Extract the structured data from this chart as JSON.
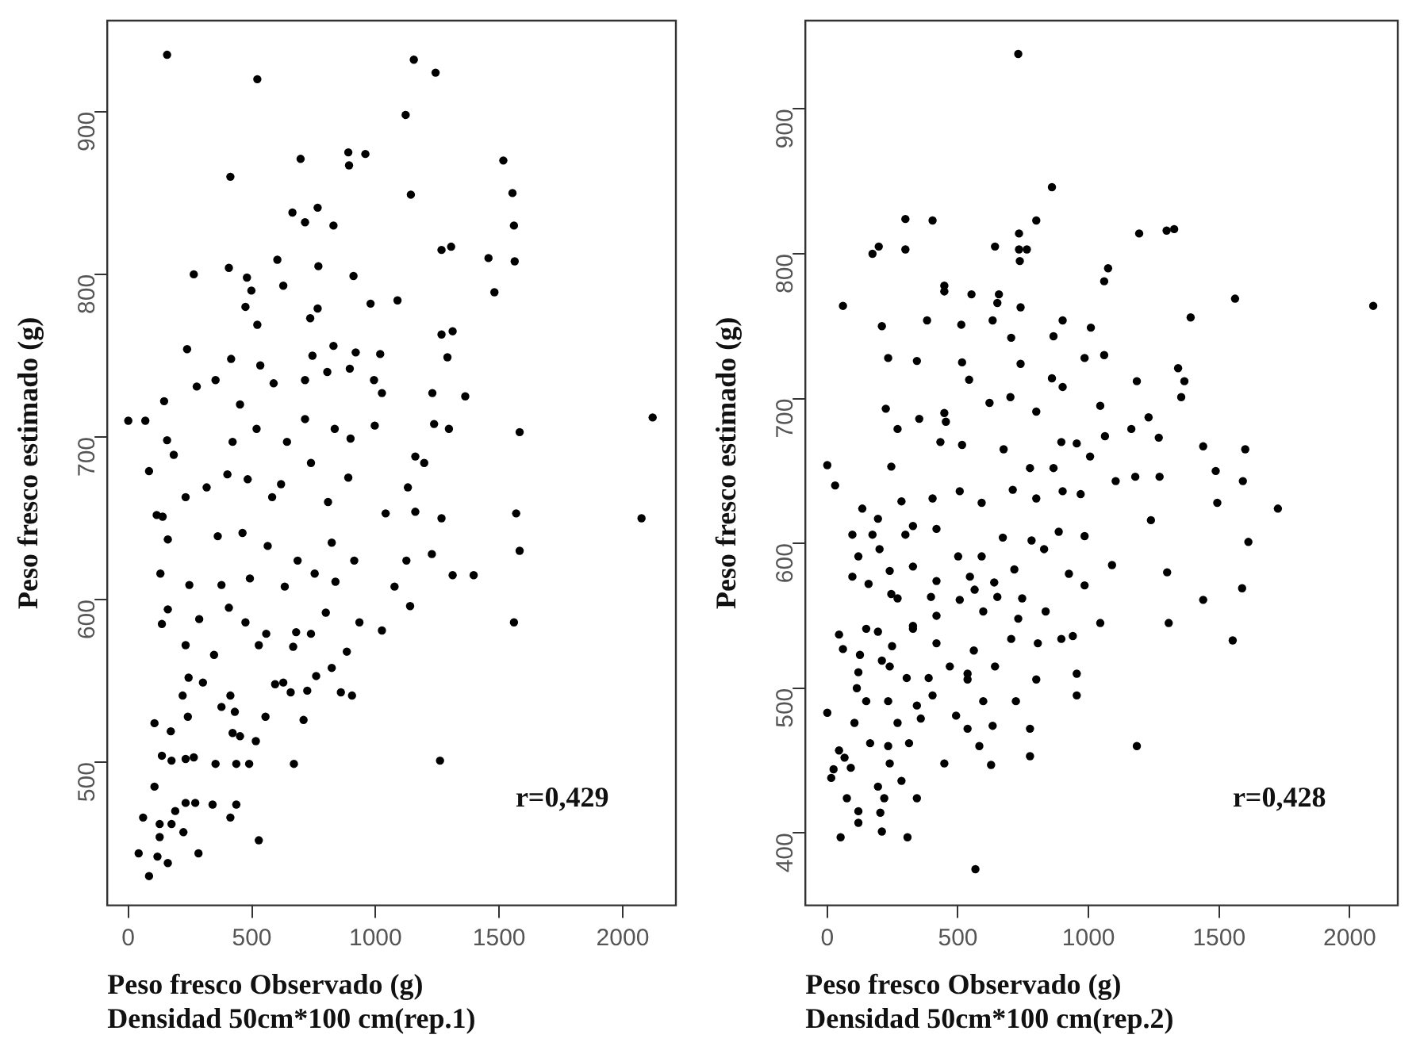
{
  "chart_data": [
    {
      "type": "scatter",
      "xlabel": "Peso fresco Observado (g)\nDensidad 50cm*100 cm(rep.1)",
      "ylabel": "Peso fresco estimado (g)",
      "xlim": [
        -85,
        2215
      ],
      "ylim": [
        412,
        956
      ],
      "xticks": [
        0,
        500,
        1000,
        1500,
        2000
      ],
      "yticks": [
        500,
        600,
        700,
        800,
        900
      ],
      "grid": false,
      "legend": false,
      "marker": "circle",
      "annotations": [
        "r=0,429"
      ],
      "series": [
        {
          "color": "#000000",
          "x": [
            157,
            522,
            1155,
            1243,
            1122,
            697,
            890,
            959,
            893,
            1517,
            1554,
            413,
            1143,
            664,
            766,
            715,
            830,
            1560,
            1267,
            1306,
            1457,
            1563,
            1481,
            265,
            407,
            480,
            603,
            769,
            911,
            627,
            498,
            474,
            766,
            980,
            1089,
            522,
            736,
            1267,
            1312,
            1291,
            238,
            416,
            534,
            745,
            830,
            920,
            1019,
            69,
            145,
            277,
            353,
            452,
            588,
            715,
            805,
            896,
            994,
            1026,
            1230,
            1363,
            0,
            1583,
            2121,
            2076,
            84,
            157,
            184,
            422,
            519,
            642,
            715,
            835,
            899,
            997,
            1237,
            1297,
            1161,
            1197,
            890,
            739,
            618,
            483,
            401,
            232,
            115,
            139,
            317,
            582,
            808,
            1041,
            1267,
            1569,
            1131,
            1161,
            160,
            362,
            462,
            564,
            685,
            823,
            914,
            1125,
            1228,
            1312,
            1397,
            1583,
            1077,
            130,
            247,
            377,
            492,
            633,
            754,
            838,
            1140,
            1560,
            160,
            287,
            407,
            474,
            558,
            679,
            799,
            935,
            1026,
            136,
            232,
            347,
            528,
            667,
            739,
            884,
            594,
            627,
            823,
            760,
            657,
            724,
            860,
            905,
            244,
            302,
            220,
            413,
            377,
            431,
            555,
            709,
            241,
            106,
            172,
            422,
            452,
            516,
            136,
            175,
            232,
            265,
            353,
            437,
            489,
            670,
            1261,
            106,
            232,
            271,
            341,
            437,
            190,
            60,
            413,
            127,
            175,
            223,
            127,
            528,
            284,
            42,
            118,
            160,
            84
          ],
          "values": [
            935,
            920,
            932,
            924,
            898,
            871,
            875,
            874,
            867,
            870,
            850,
            860,
            849,
            838,
            841,
            832,
            830,
            830,
            815,
            817,
            810,
            808,
            789,
            800,
            804,
            798,
            809,
            805,
            799,
            793,
            790,
            780,
            779,
            782,
            784,
            769,
            773,
            763,
            765,
            749,
            754,
            748,
            744,
            750,
            756,
            752,
            751,
            710,
            722,
            731,
            735,
            720,
            733,
            735,
            740,
            742,
            735,
            727,
            727,
            725,
            710,
            703,
            712,
            650,
            679,
            698,
            689,
            697,
            705,
            697,
            711,
            705,
            699,
            707,
            708,
            705,
            688,
            684,
            675,
            684,
            671,
            674,
            677,
            663,
            652,
            651,
            669,
            663,
            660,
            653,
            650,
            653,
            669,
            654,
            637,
            639,
            641,
            633,
            624,
            635,
            624,
            624,
            628,
            615,
            615,
            630,
            608,
            616,
            609,
            609,
            613,
            608,
            616,
            611,
            596,
            586,
            594,
            588,
            595,
            586,
            579,
            580,
            592,
            586,
            581,
            585,
            572,
            566,
            572,
            571,
            579,
            568,
            548,
            549,
            558,
            553,
            543,
            544,
            543,
            541,
            552,
            549,
            541,
            541,
            534,
            531,
            528,
            526,
            528,
            524,
            519,
            518,
            516,
            513,
            504,
            501,
            502,
            503,
            499,
            499,
            499,
            499,
            501,
            485,
            475,
            475,
            474,
            474,
            470,
            466,
            466,
            462,
            462,
            457,
            454,
            452,
            444,
            444,
            442,
            438,
            430
          ]
        }
      ]
    },
    {
      "type": "scatter",
      "xlabel": "Peso fresco Observado (g)\nDensidad 50cm*100 cm(rep.2)",
      "ylabel": "Peso fresco estimado (g)",
      "xlim": [
        -84,
        2184
      ],
      "ylim": [
        350,
        961
      ],
      "xticks": [
        0,
        500,
        1000,
        1500,
        2000
      ],
      "yticks": [
        400,
        500,
        600,
        700,
        800,
        900
      ],
      "grid": false,
      "legend": false,
      "marker": "circle",
      "annotations": [
        "r=0,428"
      ],
      "series": [
        {
          "color": "#000000",
          "x": [
            731,
            860,
            299,
            403,
            800,
            734,
            1194,
            1299,
            1328,
            173,
            197,
            299,
            642,
            734,
            764,
            737,
            1075,
            1060,
            448,
            448,
            60,
            552,
            657,
            651,
            740,
            1561,
            2090,
            1391,
            209,
            382,
            513,
            633,
            901,
            1009,
            704,
            866,
            1060,
            985,
            233,
            343,
            516,
            543,
            740,
            1185,
            1367,
            1343,
            1355,
            224,
            269,
            352,
            448,
            454,
            621,
            701,
            800,
            860,
            901,
            1045,
            1063,
            1164,
            1230,
            1269,
            1439,
            1600,
            0,
            30,
            245,
            433,
            516,
            675,
            776,
            866,
            896,
            955,
            1006,
            1104,
            1179,
            1272,
            1487,
            1591,
            1239,
            1493,
            1725,
            1612,
            134,
            194,
            284,
            328,
            403,
            507,
            591,
            710,
            800,
            901,
            970,
            96,
            173,
            299,
            418,
            501,
            591,
            672,
            782,
            886,
            985,
            1090,
            200,
            119,
            96,
            239,
            328,
            418,
            546,
            639,
            716,
            830,
            925,
            1301,
            1588,
            158,
            269,
            245,
            397,
            507,
            564,
            651,
            746,
            985,
            1439,
            149,
            194,
            328,
            328,
            418,
            597,
            731,
            836,
            1045,
            1307,
            1552,
            45,
            248,
            418,
            561,
            704,
            806,
            896,
            940,
            60,
            125,
            209,
            239,
            469,
            537,
            642,
            119,
            304,
            388,
            537,
            800,
            955,
            955,
            113,
            149,
            233,
            343,
            403,
            597,
            722,
            0,
            104,
            269,
            358,
            493,
            537,
            633,
            776,
            164,
            233,
            313,
            582,
            1185,
            776,
            45,
            66,
            24,
            90,
            448,
            627,
            239,
            284,
            194,
            75,
            218,
            343,
            15,
            119,
            203,
            119,
            209,
            51,
            307,
            567
          ],
          "values": [
            938,
            846,
            824,
            823,
            823,
            814,
            814,
            816,
            817,
            800,
            805,
            803,
            805,
            803,
            803,
            795,
            790,
            781,
            778,
            774,
            764,
            772,
            772,
            766,
            763,
            769,
            764,
            756,
            750,
            754,
            751,
            754,
            754,
            749,
            742,
            743,
            730,
            728,
            728,
            726,
            725,
            713,
            724,
            712,
            712,
            721,
            701,
            693,
            679,
            686,
            690,
            684,
            697,
            701,
            691,
            714,
            708,
            695,
            674,
            679,
            687,
            673,
            667,
            665,
            654,
            640,
            653,
            670,
            668,
            665,
            652,
            652,
            670,
            669,
            660,
            643,
            646,
            646,
            650,
            643,
            616,
            628,
            624,
            601,
            624,
            617,
            629,
            612,
            631,
            636,
            628,
            637,
            631,
            636,
            634,
            606,
            606,
            606,
            610,
            591,
            591,
            604,
            602,
            608,
            605,
            585,
            596,
            591,
            577,
            581,
            584,
            574,
            577,
            573,
            582,
            596,
            579,
            580,
            569,
            572,
            562,
            565,
            563,
            561,
            568,
            563,
            562,
            571,
            561,
            541,
            539,
            543,
            541,
            550,
            553,
            548,
            553,
            545,
            545,
            533,
            537,
            529,
            531,
            526,
            534,
            531,
            534,
            536,
            527,
            523,
            519,
            515,
            515,
            510,
            515,
            511,
            507,
            507,
            506,
            506,
            510,
            495,
            500,
            491,
            491,
            488,
            495,
            491,
            491,
            483,
            476,
            476,
            479,
            481,
            472,
            474,
            472,
            462,
            460,
            462,
            460,
            460,
            453,
            457,
            452,
            444,
            445,
            448,
            447,
            448,
            436,
            432,
            424,
            424,
            424,
            438,
            415,
            414,
            407,
            401,
            397,
            397,
            375
          ]
        }
      ]
    }
  ]
}
